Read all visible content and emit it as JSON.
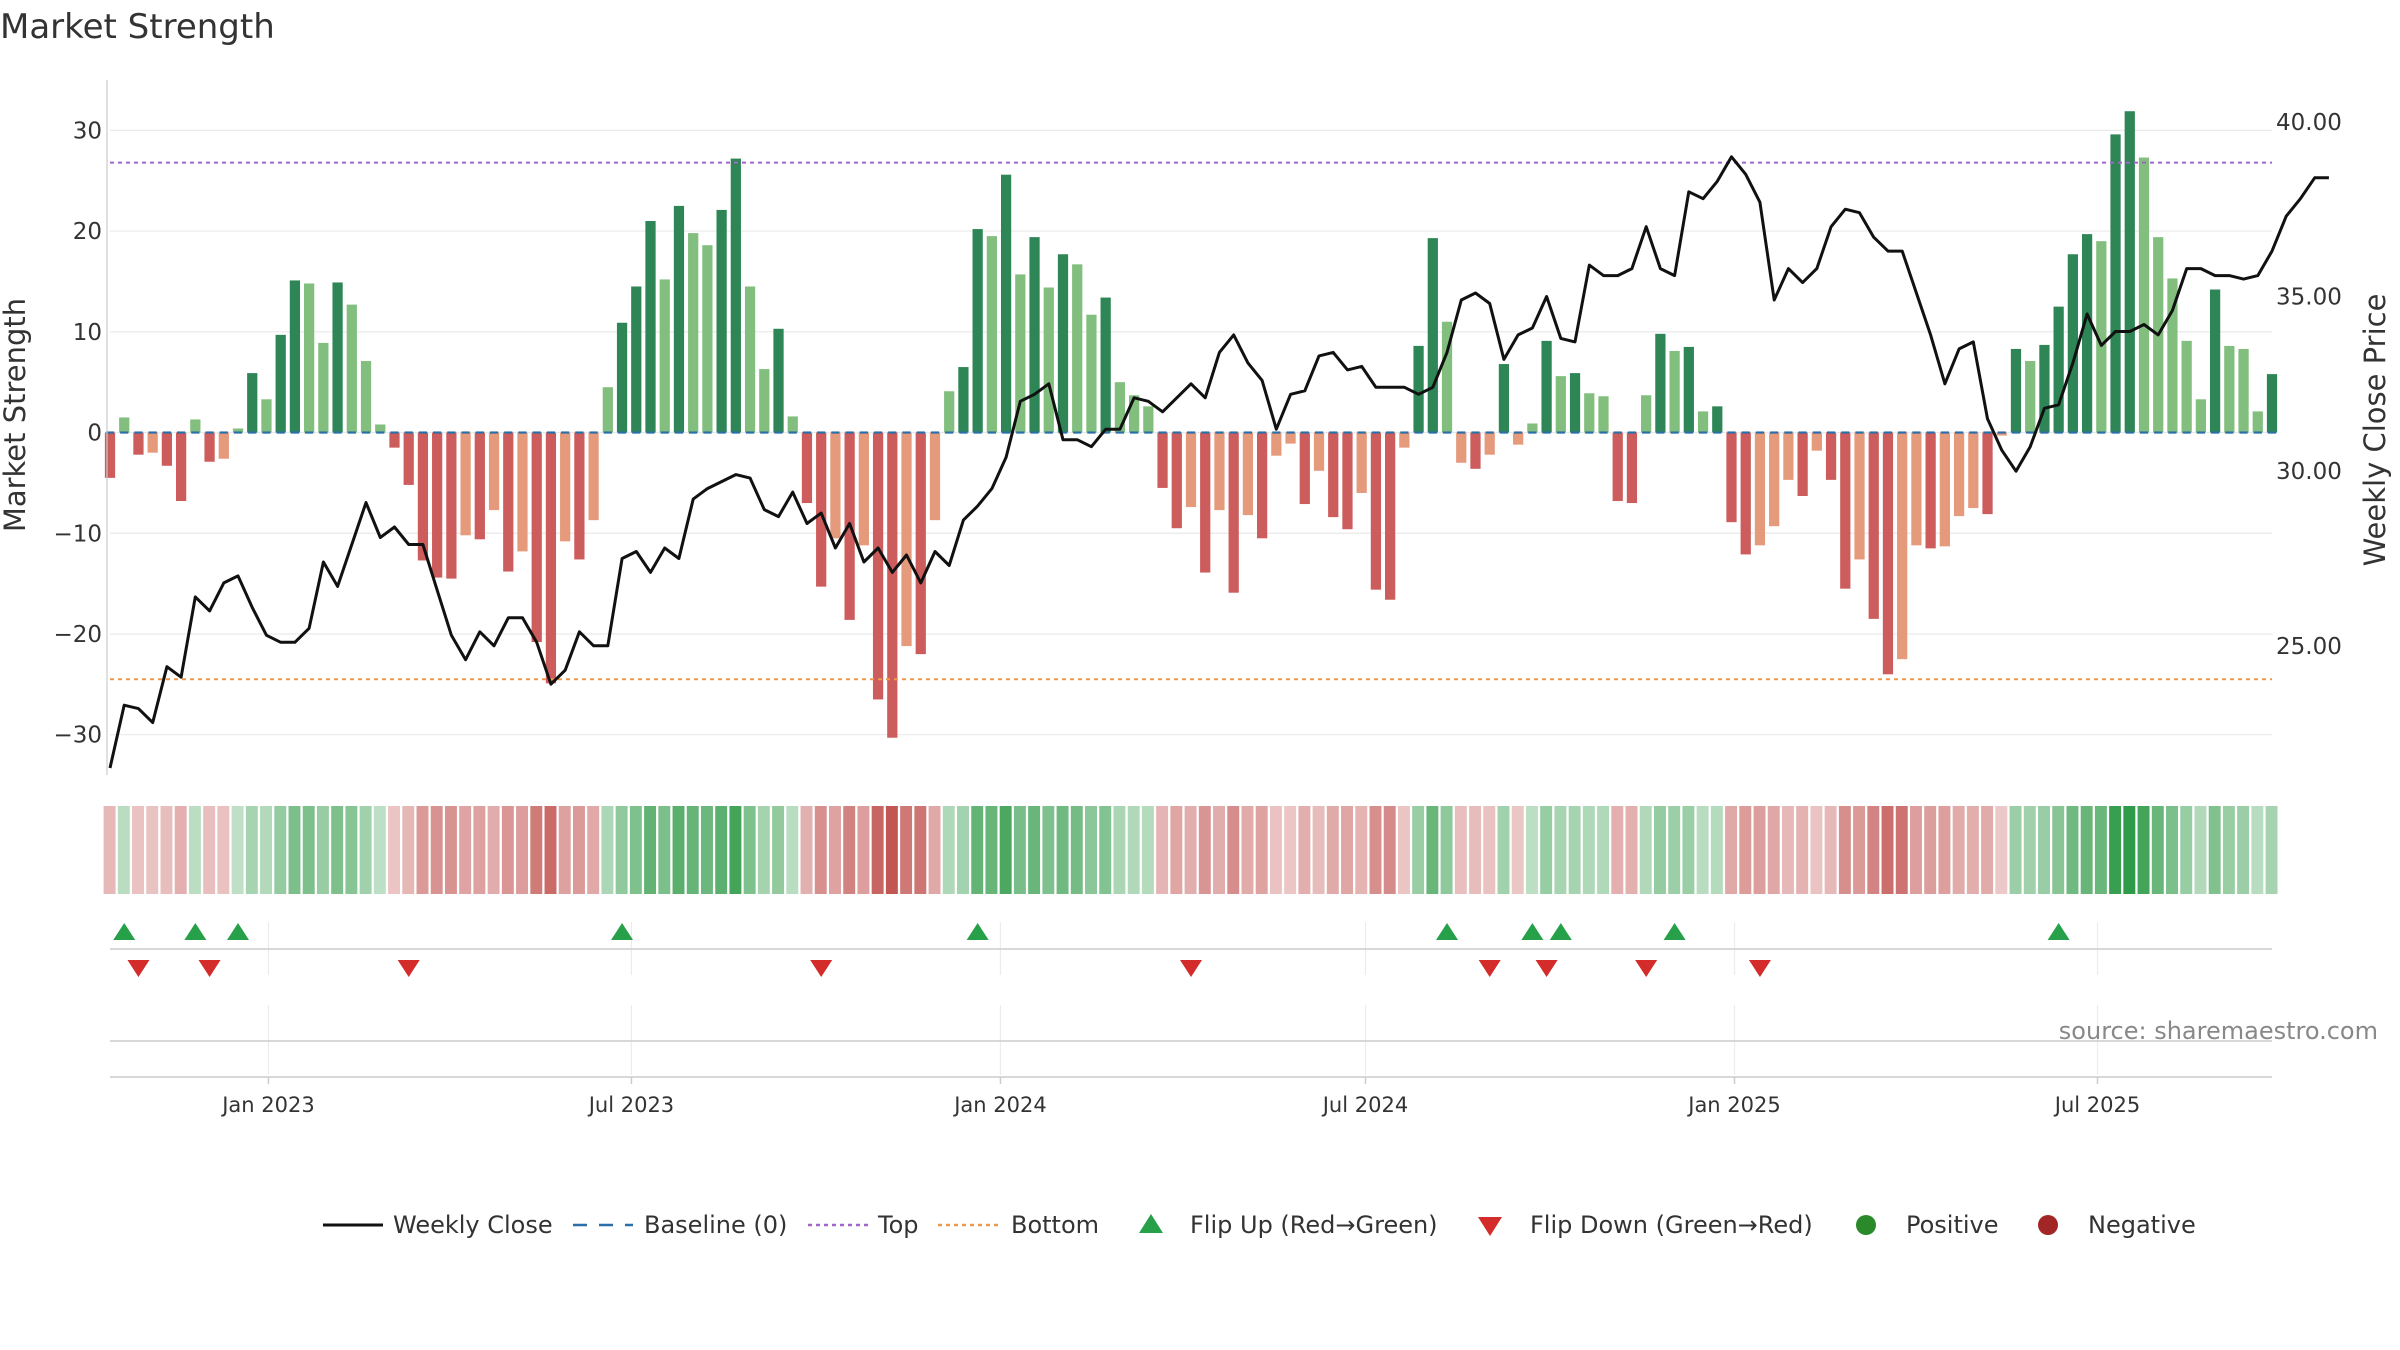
{
  "chart_data": {
    "type": "bar",
    "title": "Market Strength",
    "ylabel": "Market Strength",
    "y2label": "Weekly Close Price",
    "ylim": [
      -34,
      35
    ],
    "y2lim": [
      21.3,
      41.2
    ],
    "yticks": [
      30,
      20,
      10,
      0,
      -10,
      -20,
      -30
    ],
    "ytick_labels": [
      "30",
      "20",
      "10",
      "0",
      "−10",
      "−20",
      "−30"
    ],
    "y2ticks": [
      40,
      35,
      30,
      25
    ],
    "y2tick_labels": [
      "40.00",
      "35.00",
      "30.00",
      "25.00"
    ],
    "x_start": "2022-10-14",
    "x_end": "2025-09-26",
    "xtick_dates": [
      "2023-01-01",
      "2023-07-01",
      "2024-01-01",
      "2024-07-01",
      "2025-01-01",
      "2025-07-01"
    ],
    "xtick_labels": [
      "Jan 2023",
      "Jul 2023",
      "Jan 2024",
      "Jul 2024",
      "Jan 2025",
      "Jul 2025"
    ],
    "top_level": 26.8,
    "bottom_level": -24.5,
    "baseline": 0,
    "strength": [
      -4.5,
      1.5,
      -2.2,
      -2.0,
      -3.3,
      -6.8,
      1.3,
      -2.9,
      -2.6,
      0.4,
      5.9,
      3.3,
      9.7,
      15.1,
      14.8,
      8.9,
      14.9,
      12.7,
      7.1,
      0.8,
      -1.5,
      -5.2,
      -12.7,
      -14.4,
      -14.5,
      -10.2,
      -10.6,
      -7.7,
      -13.8,
      -11.8,
      -20.8,
      -24.9,
      -10.8,
      -12.6,
      -8.7,
      4.5,
      10.9,
      14.5,
      21.0,
      15.2,
      22.5,
      19.8,
      18.6,
      22.1,
      27.2,
      14.5,
      6.3,
      10.3,
      1.6,
      -7.0,
      -15.3,
      -10.5,
      -18.6,
      -11.2,
      -26.5,
      -30.3,
      -21.2,
      -22.0,
      -8.7,
      4.1,
      6.5,
      20.2,
      19.5,
      25.6,
      15.7,
      19.4,
      14.4,
      17.7,
      16.7,
      11.7,
      13.4,
      5.0,
      3.7,
      2.6,
      -5.5,
      -9.5,
      -7.4,
      -13.9,
      -7.7,
      -15.9,
      -8.2,
      -10.5,
      -2.3,
      -1.1,
      -7.1,
      -3.8,
      -8.4,
      -9.6,
      -6.0,
      -15.6,
      -16.6,
      -1.5,
      8.6,
      19.3,
      11.0,
      -3.0,
      -3.6,
      -2.2,
      6.8,
      -1.2,
      0.9,
      9.1,
      5.6,
      5.9,
      3.9,
      3.6,
      -6.8,
      -7.0,
      3.7,
      9.8,
      8.1,
      8.5,
      2.1,
      2.6,
      -8.9,
      -12.1,
      -11.2,
      -9.3,
      -4.7,
      -6.3,
      -1.8,
      -4.7,
      -15.5,
      -12.6,
      -18.5,
      -24.0,
      -22.5,
      -11.2,
      -11.5,
      -11.3,
      -8.3,
      -7.5,
      -8.1,
      -0.3,
      8.3,
      7.1,
      8.7,
      12.5,
      17.7,
      19.7,
      19.0,
      29.6,
      31.9,
      27.3,
      19.4,
      15.3,
      9.1,
      3.3,
      14.2,
      8.6,
      8.3,
      2.1,
      5.8
    ],
    "close": [
      21.5,
      23.3,
      23.2,
      22.8,
      24.4,
      24.1,
      26.4,
      26.0,
      26.8,
      27.0,
      26.1,
      25.3,
      25.1,
      25.1,
      25.5,
      27.4,
      26.7,
      27.9,
      29.1,
      28.1,
      28.4,
      27.9,
      27.9,
      26.6,
      25.3,
      24.6,
      25.4,
      25.0,
      25.8,
      25.8,
      25.1,
      23.9,
      24.3,
      25.4,
      25.0,
      25.0,
      27.5,
      27.7,
      27.1,
      27.8,
      27.5,
      29.2,
      29.5,
      29.7,
      29.9,
      29.8,
      28.9,
      28.7,
      29.4,
      28.5,
      28.8,
      27.8,
      28.5,
      27.4,
      27.8,
      27.1,
      27.6,
      26.8,
      27.7,
      27.3,
      28.6,
      29.0,
      29.5,
      30.4,
      32.0,
      32.2,
      32.5,
      30.9,
      30.9,
      30.7,
      31.2,
      31.2,
      32.1,
      32.0,
      31.7,
      32.1,
      32.5,
      32.1,
      33.4,
      33.9,
      33.1,
      32.6,
      31.2,
      32.2,
      32.3,
      33.3,
      33.4,
      32.9,
      33.0,
      32.4,
      32.4,
      32.4,
      32.2,
      32.4,
      33.4,
      34.9,
      35.1,
      34.8,
      33.2,
      33.9,
      34.1,
      35.0,
      33.8,
      33.7,
      35.9,
      35.6,
      35.6,
      35.8,
      37.0,
      35.8,
      35.6,
      38.0,
      37.8,
      38.3,
      39.0,
      38.5,
      37.7,
      34.9,
      35.8,
      35.4,
      35.8,
      37.0,
      37.5,
      37.4,
      36.7,
      36.3,
      36.3,
      35.1,
      33.9,
      32.5,
      33.5,
      33.7,
      31.5,
      30.6,
      30.0,
      30.7,
      31.8,
      31.9,
      33.1,
      34.5,
      33.6,
      34.0,
      34.0,
      34.2,
      33.9,
      34.6,
      35.8,
      35.8,
      35.6,
      35.6,
      35.5,
      35.6,
      36.3,
      37.3,
      37.8,
      38.4,
      38.4
    ],
    "flip_up_weeks": [
      1,
      6,
      9,
      36,
      61,
      94,
      100,
      102,
      110,
      137
    ],
    "flip_down_weeks": [
      2,
      7,
      21,
      50,
      76,
      97,
      101,
      108,
      116
    ],
    "heat_strip": "weekly strength intensity (green = positive, red = negative)",
    "legend": [
      "Weekly Close",
      "Baseline (0)",
      "Top",
      "Bottom",
      "Flip Up (Red→Green)",
      "Flip Down (Green→Red)",
      "Positive",
      "Negative"
    ],
    "legend_placement": "bottom-center",
    "source": "source: sharemaestro.com"
  },
  "colors": {
    "pos_strong": "#2e8555",
    "pos_weak": "#82bf7e",
    "neg_strong": "#cd5c5c",
    "neg_weak": "#e59a7c",
    "close_line": "#111111",
    "baseline": "#2c6fa8",
    "top": "#a066c8",
    "bottom": "#ec9a4a",
    "flip_up": "#27a04a",
    "flip_down": "#d42b2b",
    "positive_dot": "#2a8a2a",
    "negative_dot": "#a32626"
  }
}
